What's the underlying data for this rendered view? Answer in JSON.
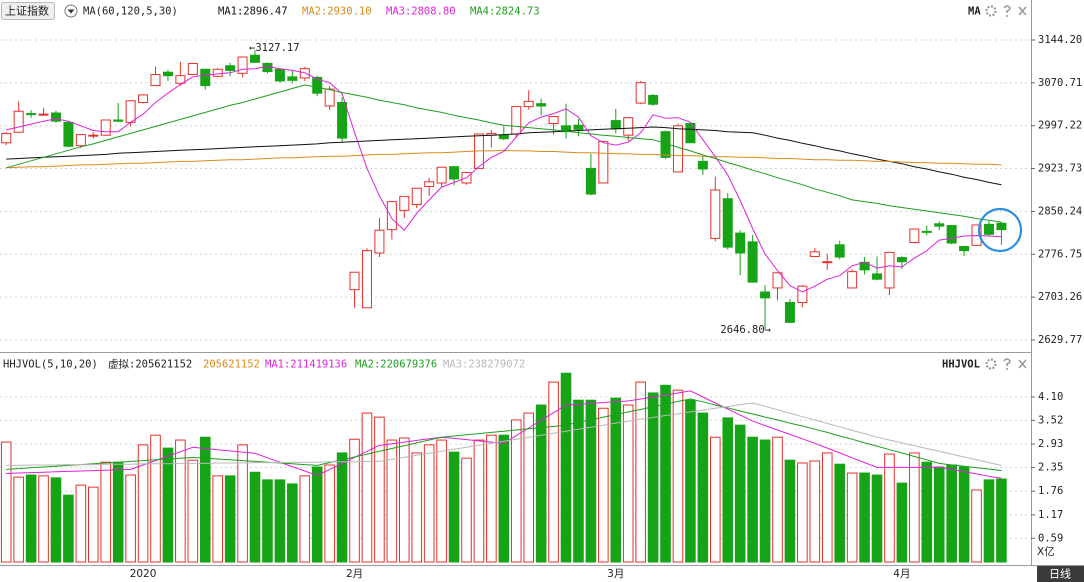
{
  "period": "日线",
  "chart_data": [
    {
      "type": "candlestick",
      "title": "上证指数",
      "subtitle": "MA(60,120,5,30)",
      "legend_title": "MA",
      "up_color": "#e5312c",
      "down_color": "#16a416",
      "ylim": [
        2612.6,
        3204.2
      ],
      "yticks": [
        {
          "value": 3144.2,
          "label": "3144.20"
        },
        3070.71,
        2997.22,
        2923.73,
        2850.24,
        2776.75,
        2703.26,
        2629.77
      ],
      "grid": true,
      "annotations": [
        {
          "text": "←3127.17"
        },
        {
          "text": "2646.80→"
        }
      ],
      "open": [
        2968,
        2986,
        3018,
        3016,
        3019,
        3003,
        2963,
        2980,
        2981,
        3007,
        3003,
        3037,
        3066,
        3089,
        3070,
        3085,
        3094,
        3082,
        3100,
        3087,
        3118,
        3104,
        3094,
        3081,
        3079,
        3080,
        3031,
        3037,
        2716,
        2685,
        2779,
        2819,
        2852,
        2862,
        2893,
        2899,
        2927,
        2899,
        2924,
        2981,
        2981,
        2983,
        3030,
        3035,
        3001,
        2997,
        2998,
        2924,
        2899,
        3006,
        2981,
        3036,
        3049,
        2987,
        2918,
        3001,
        2936,
        2804,
        2872,
        2813,
        2798,
        2712,
        2719,
        2694,
        2694,
        2773,
        2763,
        2793,
        2719,
        2763,
        2743,
        2719,
        2771,
        2797,
        2816,
        2829,
        2826,
        2790,
        2792,
        2828,
        2830
      ],
      "high": [
        2986,
        3039,
        3024,
        3028,
        3023,
        3006,
        2983,
        2986,
        3007,
        3036,
        3041,
        3051,
        3098,
        3093,
        3107,
        3105,
        3095,
        3096,
        3105,
        3115,
        3127.17,
        3106,
        3096,
        3091,
        3098,
        3083,
        3065,
        3046,
        2746,
        2787,
        2839,
        2867,
        2876,
        2890,
        2908,
        2926,
        2928,
        2918,
        2983,
        2990,
        2998,
        3030,
        3058,
        3044,
        3014,
        3035,
        3009,
        2949,
        2970,
        3026,
        3012,
        3074,
        3052,
        2989,
        3001,
        3002,
        2944,
        2910,
        2882,
        2818,
        2810,
        2724,
        2746,
        2700,
        2724,
        2787,
        2777,
        2800,
        2751,
        2772,
        2773,
        2780,
        2773,
        2820,
        2826,
        2833,
        2826,
        2790,
        2827,
        2834,
        2832
      ],
      "low": [
        2964,
        2985,
        3011,
        3014,
        3002,
        2960,
        2959,
        2975,
        2980,
        3003,
        2996,
        3035,
        3066,
        3074,
        3065,
        3084,
        3059,
        3080,
        3082,
        3080,
        3105,
        3087,
        3071,
        3070,
        3074,
        3048,
        3024,
        2970,
        2685,
        2685,
        2772,
        2802,
        2839,
        2856,
        2877,
        2892,
        2895,
        2896,
        2924,
        2960,
        2972,
        2976,
        3025,
        3015,
        2982,
        2975,
        2979,
        2878,
        2899,
        2984,
        2971,
        3034,
        3031,
        2940,
        2918,
        2968,
        2913,
        2799,
        2785,
        2741,
        2728,
        2646.8,
        2698,
        2660,
        2686,
        2772,
        2750,
        2768,
        2719,
        2742,
        2732,
        2707,
        2752,
        2795,
        2809,
        2818,
        2794,
        2774,
        2792,
        2808,
        2793
      ],
      "close": [
        2984,
        3022,
        3017,
        3017,
        3005,
        2962,
        2982,
        2981,
        3007,
        3005,
        3040,
        3050,
        3085,
        3083,
        3083,
        3104,
        3066,
        3094,
        3092,
        3115,
        3106,
        3090,
        3074,
        3075,
        3095,
        3053,
        3060,
        2976,
        2746,
        2783,
        2818,
        2867,
        2876,
        2890,
        2901,
        2926,
        2906,
        2917,
        2983,
        2984,
        2975,
        3030,
        3039,
        3031,
        3013,
        2987,
        2991,
        2880,
        2970,
        2992,
        3011,
        3071,
        3034,
        2943,
        2997,
        2968,
        2923,
        2887,
        2789,
        2779,
        2729,
        2702,
        2745,
        2660,
        2722,
        2781,
        2764,
        2772,
        2747,
        2750,
        2734,
        2780,
        2764,
        2820,
        2815,
        2825,
        2796,
        2783,
        2827,
        2811,
        2819
      ],
      "series": [
        {
          "name": "MA1:2896.47",
          "color": "#111111",
          "values": [
            2940,
            2941,
            2942,
            2943,
            2944,
            2945,
            2946,
            2947,
            2948,
            2950,
            2951,
            2952,
            2953,
            2954,
            2955,
            2956,
            2957,
            2958,
            2959,
            2960,
            2961,
            2962,
            2963,
            2964,
            2965,
            2966,
            2968,
            2969,
            2970,
            2971,
            2972,
            2973,
            2974,
            2975,
            2976,
            2977,
            2978,
            2979,
            2980,
            2981,
            2982,
            2983,
            2985,
            2986,
            2987,
            2988,
            2989,
            2990,
            2991,
            2992,
            2993,
            2994,
            2995,
            2994,
            2992,
            2991,
            2990,
            2989,
            2987,
            2986,
            2985,
            2981,
            2976,
            2972,
            2967,
            2963,
            2958,
            2954,
            2949,
            2945,
            2940,
            2936,
            2932,
            2927,
            2923,
            2918,
            2914,
            2909,
            2905,
            2900,
            2896
          ]
        },
        {
          "name": "MA2:2930.10",
          "color": "#dc8a1c",
          "values": [
            2925,
            2926,
            2927,
            2927,
            2928,
            2929,
            2930,
            2930,
            2931,
            2932,
            2933,
            2933,
            2934,
            2935,
            2936,
            2936,
            2937,
            2938,
            2939,
            2939,
            2940,
            2941,
            2942,
            2942,
            2943,
            2944,
            2945,
            2945,
            2946,
            2947,
            2948,
            2948,
            2949,
            2950,
            2951,
            2951,
            2952,
            2953,
            2954,
            2954,
            2955,
            2954,
            2954,
            2953,
            2953,
            2952,
            2951,
            2951,
            2950,
            2949,
            2949,
            2948,
            2948,
            2947,
            2946,
            2946,
            2945,
            2944,
            2944,
            2943,
            2943,
            2942,
            2941,
            2941,
            2940,
            2939,
            2939,
            2938,
            2938,
            2937,
            2936,
            2936,
            2935,
            2934,
            2934,
            2933,
            2933,
            2932,
            2931,
            2931,
            2930
          ]
        },
        {
          "name": "MA3:2808.80",
          "color": "#dd22dd",
          "values": [
            2990,
            2995,
            3000,
            3005,
            3009,
            3005,
            2997,
            2989,
            2987,
            2987,
            3003,
            3017,
            3037,
            3053,
            3068,
            3081,
            3084,
            3086,
            3088,
            3094,
            3095,
            3099,
            3095,
            3092,
            3088,
            3077,
            3071,
            3052,
            2986,
            2924,
            2877,
            2838,
            2818,
            2847,
            2870,
            2892,
            2900,
            2908,
            2927,
            2943,
            2953,
            2978,
            3002,
            3012,
            3018,
            3026,
            3012,
            2980,
            2968,
            2964,
            2969,
            2985,
            3016,
            3010,
            3011,
            3003,
            2973,
            2944,
            2913,
            2869,
            2821,
            2777,
            2749,
            2723,
            2712,
            2722,
            2734,
            2740,
            2757,
            2763,
            2753,
            2757,
            2755,
            2770,
            2783,
            2801,
            2804,
            2808,
            2809,
            2808,
            2807
          ]
        },
        {
          "name": "MA4:2824.73",
          "color": "#1f9e1f",
          "values": [
            2925,
            2931,
            2937,
            2943,
            2949,
            2955,
            2961,
            2966,
            2972,
            2978,
            2984,
            2990,
            2996,
            3002,
            3008,
            3014,
            3020,
            3026,
            3032,
            3037,
            3043,
            3049,
            3055,
            3061,
            3067,
            3063,
            3059,
            3054,
            3050,
            3046,
            3041,
            3037,
            3033,
            3028,
            3024,
            3020,
            3015,
            3011,
            3007,
            3002,
            2998,
            2996,
            2994,
            2992,
            2990,
            2988,
            2985,
            2983,
            2981,
            2979,
            2977,
            2975,
            2973,
            2967,
            2960,
            2954,
            2947,
            2941,
            2934,
            2928,
            2921,
            2915,
            2908,
            2902,
            2896,
            2889,
            2883,
            2877,
            2870,
            2867,
            2864,
            2860,
            2857,
            2854,
            2851,
            2848,
            2845,
            2842,
            2838,
            2835,
            2832
          ]
        }
      ]
    },
    {
      "type": "volume",
      "title": "HHJVOL(5,10,20)",
      "subtitle": "虚拟:205621152",
      "current_label": "205621152",
      "current_color": "#dc8a1c",
      "legend_title": "HHJVOL",
      "unit": "X亿",
      "ylim": [
        0,
        4.82
      ],
      "yticks": [
        {
          "value": 4.1,
          "label": "4.10"
        },
        3.52,
        2.93,
        2.35,
        1.76,
        1.17,
        0.59
      ],
      "grid": true,
      "categories": [
        null,
        null,
        null,
        null,
        null,
        null,
        null,
        null,
        null,
        null,
        null,
        "2020",
        null,
        null,
        null,
        null,
        null,
        null,
        null,
        null,
        null,
        null,
        null,
        null,
        null,
        null,
        null,
        null,
        "2月",
        null,
        null,
        null,
        null,
        null,
        null,
        null,
        null,
        null,
        null,
        null,
        null,
        null,
        null,
        null,
        null,
        null,
        null,
        null,
        null,
        "3月",
        null,
        null,
        null,
        null,
        null,
        null,
        null,
        null,
        null,
        null,
        null,
        null,
        null,
        null,
        null,
        null,
        null,
        null,
        null,
        null,
        null,
        null,
        "4月",
        null,
        null,
        null,
        null,
        null,
        null,
        null,
        null
      ],
      "values": [
        2.98,
        2.11,
        2.16,
        2.14,
        2.09,
        1.66,
        1.91,
        1.86,
        2.48,
        2.48,
        2.16,
        2.91,
        3.15,
        2.83,
        3.03,
        2.53,
        3.1,
        2.14,
        2.14,
        2.91,
        2.23,
        2.04,
        2.04,
        1.94,
        2.14,
        2.36,
        2.41,
        2.71,
        3.05,
        3.7,
        3.6,
        3.03,
        3.08,
        2.71,
        2.91,
        3.03,
        2.73,
        2.58,
        3.03,
        3.15,
        3.15,
        3.53,
        3.7,
        3.9,
        4.47,
        4.69,
        4.02,
        4.02,
        3.82,
        4.07,
        3.9,
        4.47,
        4.2,
        4.39,
        4.27,
        4.02,
        3.7,
        3.1,
        3.58,
        3.4,
        3.1,
        3.03,
        3.1,
        2.53,
        2.46,
        2.51,
        2.71,
        2.43,
        2.21,
        2.21,
        2.16,
        2.68,
        1.96,
        2.71,
        2.48,
        2.36,
        2.41,
        2.36,
        1.79,
        2.04,
        2.06
      ],
      "series": [
        {
          "name": "MA1:211419136",
          "color": "#dd22dd",
          "values": [
            2.2,
            2.21,
            2.22,
            2.23,
            2.24,
            2.25,
            2.26,
            2.27,
            2.28,
            2.29,
            2.3,
            2.41,
            2.52,
            2.63,
            2.74,
            2.85,
            2.82,
            2.79,
            2.76,
            2.73,
            2.7,
            2.59,
            2.48,
            2.37,
            2.26,
            2.15,
            2.3,
            2.45,
            2.6,
            2.75,
            2.9,
            2.94,
            2.98,
            3.02,
            3.06,
            3.1,
            3.07,
            3.04,
            3.01,
            2.98,
            2.95,
            3.14,
            3.33,
            3.52,
            3.71,
            3.9,
            3.92,
            3.94,
            3.96,
            3.98,
            4,
            4.05,
            4.1,
            4.15,
            4.2,
            4.25,
            4.1,
            3.95,
            3.8,
            3.65,
            3.5,
            3.39,
            3.28,
            3.17,
            3.06,
            2.95,
            2.83,
            2.71,
            2.59,
            2.47,
            2.35,
            2.35,
            2.35,
            2.35,
            2.35,
            2.35,
            2.3,
            2.24,
            2.19,
            2.13,
            2.08
          ]
        },
        {
          "name": "MA2:220679376",
          "color": "#1f9e1f",
          "values": [
            2.3,
            2.32,
            2.34,
            2.36,
            2.38,
            2.4,
            2.42,
            2.44,
            2.46,
            2.48,
            2.5,
            2.52,
            2.54,
            2.56,
            2.58,
            2.6,
            2.58,
            2.56,
            2.54,
            2.52,
            2.5,
            2.48,
            2.46,
            2.44,
            2.42,
            2.4,
            2.47,
            2.54,
            2.61,
            2.68,
            2.75,
            2.82,
            2.89,
            2.96,
            3.03,
            3.1,
            3.13,
            3.16,
            3.19,
            3.22,
            3.25,
            3.28,
            3.31,
            3.34,
            3.37,
            3.4,
            3.47,
            3.53,
            3.6,
            3.66,
            3.73,
            3.79,
            3.86,
            3.92,
            3.99,
            4.05,
            3.98,
            3.9,
            3.83,
            3.75,
            3.68,
            3.6,
            3.53,
            3.45,
            3.38,
            3.3,
            3.22,
            3.13,
            3.05,
            2.96,
            2.88,
            2.79,
            2.71,
            2.62,
            2.54,
            2.45,
            2.41,
            2.38,
            2.34,
            2.31,
            2.27
          ]
        },
        {
          "name": "MA3:238279072",
          "color": "#b8b8b8",
          "values": [
            2.4,
            2.4,
            2.41,
            2.41,
            2.41,
            2.42,
            2.42,
            2.42,
            2.43,
            2.43,
            2.43,
            2.44,
            2.44,
            2.44,
            2.45,
            2.45,
            2.45,
            2.46,
            2.46,
            2.46,
            2.47,
            2.47,
            2.47,
            2.48,
            2.48,
            2.48,
            2.49,
            2.49,
            2.49,
            2.5,
            2.5,
            2.55,
            2.6,
            2.65,
            2.7,
            2.75,
            2.8,
            2.85,
            2.9,
            2.95,
            3,
            3.05,
            3.1,
            3.15,
            3.2,
            3.25,
            3.3,
            3.35,
            3.4,
            3.45,
            3.5,
            3.55,
            3.59,
            3.64,
            3.68,
            3.73,
            3.77,
            3.82,
            3.86,
            3.91,
            3.95,
            3.87,
            3.78,
            3.7,
            3.61,
            3.53,
            3.44,
            3.36,
            3.27,
            3.19,
            3.1,
            3.03,
            2.96,
            2.89,
            2.82,
            2.75,
            2.68,
            2.61,
            2.54,
            2.47,
            2.4
          ]
        }
      ]
    }
  ]
}
